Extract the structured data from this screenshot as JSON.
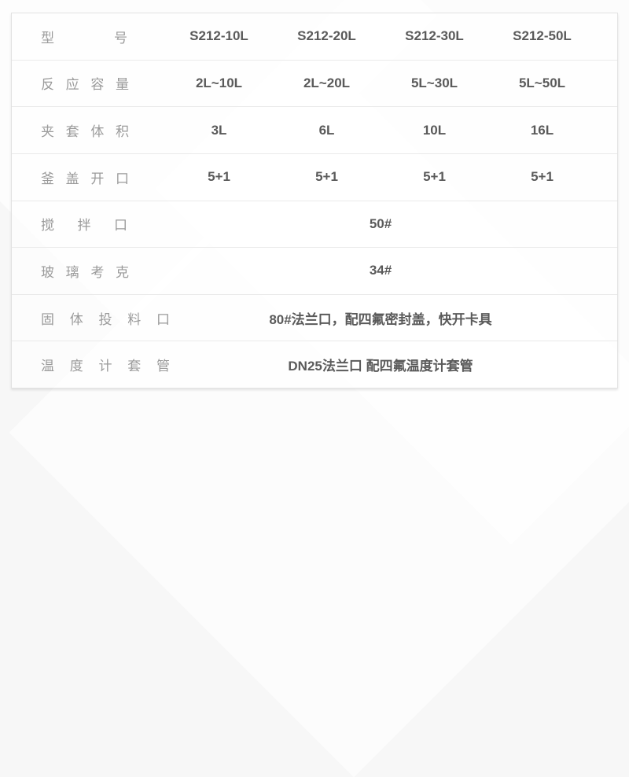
{
  "table": {
    "rows": [
      {
        "label": "型号",
        "values": [
          "S212-10L",
          "S212-20L",
          "S212-30L",
          "S212-50L"
        ]
      },
      {
        "label": "反应容量",
        "values": [
          "2L~10L",
          "2L~20L",
          "5L~30L",
          "5L~50L"
        ]
      },
      {
        "label": "夹套体积",
        "values": [
          "3L",
          "6L",
          "10L",
          "16L"
        ]
      },
      {
        "label": "釜盖开口",
        "values": [
          "5+1",
          "5+1",
          "5+1",
          "5+1"
        ]
      },
      {
        "label": "搅拌口",
        "merged": "50#"
      },
      {
        "label": "玻璃考克",
        "merged": "34#"
      },
      {
        "label": "固体投料口",
        "merged": "80#法兰口，配四氟密封盖，快开卡具"
      },
      {
        "label": "温度计套管",
        "merged": "DN25法兰口 配四氟温度计套管"
      }
    ],
    "colors": {
      "label_text": "#9a9a9a",
      "value_text": "#5a5a5a",
      "border": "#e2e2e2",
      "row_divider": "#eaeaea",
      "page_background": "#f7f7f7"
    }
  }
}
